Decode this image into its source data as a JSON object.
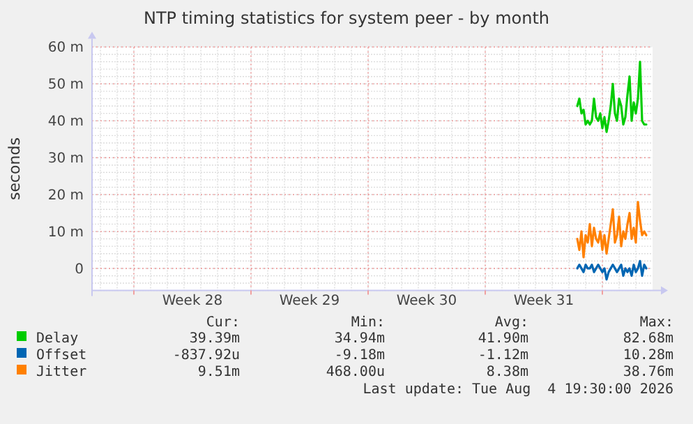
{
  "chart_data": {
    "type": "line",
    "title": "NTP timing statistics for system peer - by month",
    "ylabel": "seconds",
    "x": [
      "2026-08-01T12:00",
      "2026-08-01T15:00",
      "2026-08-01T18:00",
      "2026-08-01T21:00",
      "2026-08-02T00:00",
      "2026-08-02T03:00",
      "2026-08-02T06:00",
      "2026-08-02T09:00",
      "2026-08-02T12:00",
      "2026-08-02T15:00",
      "2026-08-02T18:00",
      "2026-08-02T21:00",
      "2026-08-03T00:00",
      "2026-08-03T03:00",
      "2026-08-03T06:00",
      "2026-08-03T09:00",
      "2026-08-03T12:00",
      "2026-08-03T15:00",
      "2026-08-03T18:00",
      "2026-08-03T21:00",
      "2026-08-04T00:00",
      "2026-08-04T03:00",
      "2026-08-04T06:00",
      "2026-08-04T09:00",
      "2026-08-04T12:00",
      "2026-08-04T15:00",
      "2026-08-04T18:00",
      "2026-08-04T21:00",
      "2026-08-05T00:00",
      "2026-08-05T03:00",
      "2026-08-05T06:00",
      "2026-08-05T09:00",
      "2026-08-05T12:00",
      "2026-08-05T15:00"
    ],
    "series": [
      {
        "name": "Delay",
        "color": "#00cc00",
        "values": [
          44,
          46,
          42,
          43,
          39,
          40,
          39,
          40,
          46,
          41,
          40,
          42,
          38,
          41,
          37,
          40,
          44,
          50,
          42,
          40,
          46,
          44,
          39,
          41,
          47,
          52,
          40,
          45,
          42,
          46,
          56,
          40,
          39,
          39
        ]
      },
      {
        "name": "Offset",
        "color": "#0066b3",
        "values": [
          0,
          1,
          0,
          -1,
          1,
          0,
          0,
          1,
          -1,
          0,
          1,
          0,
          -1,
          0,
          -3,
          -1,
          0,
          1,
          0,
          -1,
          0,
          1,
          -2,
          0,
          -1,
          0,
          -2,
          1,
          -1,
          0,
          2,
          -2,
          1,
          0
        ]
      },
      {
        "name": "Jitter",
        "color": "#ff8000",
        "values": [
          8,
          5,
          10,
          3,
          9,
          7,
          12,
          6,
          11,
          8,
          7,
          10,
          5,
          9,
          4,
          8,
          12,
          16,
          7,
          9,
          14,
          6,
          10,
          8,
          12,
          15,
          8,
          11,
          7,
          18,
          13,
          9,
          10,
          9
        ]
      }
    ],
    "xlim": [
      "2026-07-03T12:00",
      "2026-08-06T00:00"
    ],
    "xticks": [
      {
        "value": "2026-07-06",
        "label": null
      },
      {
        "value": "2026-07-09T12:00",
        "label": "Week 28"
      },
      {
        "value": "2026-07-13",
        "label": null
      },
      {
        "value": "2026-07-16T12:00",
        "label": "Week 29"
      },
      {
        "value": "2026-07-20",
        "label": null
      },
      {
        "value": "2026-07-23T12:00",
        "label": "Week 30"
      },
      {
        "value": "2026-07-27",
        "label": null
      },
      {
        "value": "2026-07-30T12:00",
        "label": "Week 31"
      },
      {
        "value": "2026-08-03",
        "label": null
      }
    ],
    "ylim": [
      -6,
      60
    ],
    "yticks": [
      {
        "value": 0,
        "label": "0"
      },
      {
        "value": 10,
        "label": "10 m"
      },
      {
        "value": 20,
        "label": "20 m"
      },
      {
        "value": 30,
        "label": "30 m"
      },
      {
        "value": 40,
        "label": "40 m"
      },
      {
        "value": 50,
        "label": "50 m"
      },
      {
        "value": 60,
        "label": "60 m"
      }
    ],
    "grid": true,
    "legend": "bottom",
    "line_style": "solid",
    "marker": "none",
    "annotations": [
      "Cur:",
      "Min:",
      "Avg:",
      "Max:",
      "39.39m",
      "34.94m",
      "41.90m",
      "82.68m",
      "-837.92u",
      "-9.18m",
      "-1.12m",
      "10.28m",
      "9.51m",
      "468.00u",
      "8.38m",
      "38.76m",
      "Last update: Tue Aug  4 19:30:00 2026"
    ]
  }
}
